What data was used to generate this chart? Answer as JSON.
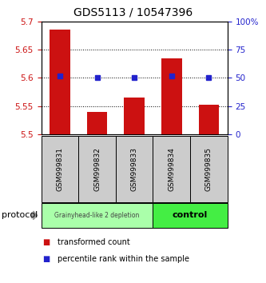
{
  "title": "GDS5113 / 10547396",
  "samples": [
    "GSM999831",
    "GSM999832",
    "GSM999833",
    "GSM999834",
    "GSM999835"
  ],
  "bar_values": [
    5.685,
    5.54,
    5.565,
    5.635,
    5.553
  ],
  "bar_base": 5.5,
  "percentile_values": [
    52,
    50,
    50,
    52,
    50
  ],
  "bar_color": "#cc1111",
  "percentile_color": "#2222cc",
  "ylim_left": [
    5.5,
    5.7
  ],
  "ylim_right": [
    0,
    100
  ],
  "yticks_left": [
    5.5,
    5.55,
    5.6,
    5.65,
    5.7
  ],
  "ytick_labels_left": [
    "5.5",
    "5.55",
    "5.6",
    "5.65",
    "5.7"
  ],
  "yticks_right": [
    0,
    25,
    50,
    75,
    100
  ],
  "ytick_labels_right": [
    "0",
    "25",
    "50",
    "75",
    "100%"
  ],
  "grid_yticks": [
    5.55,
    5.6,
    5.65
  ],
  "group1_label": "Grainyhead-like 2 depletion",
  "group2_label": "control",
  "group1_color": "#aaffaa",
  "group2_color": "#44ee44",
  "sample_box_color": "#cccccc",
  "protocol_label": "protocol",
  "legend_entries": [
    "transformed count",
    "percentile rank within the sample"
  ],
  "title_fontsize": 10,
  "tick_fontsize": 7.5,
  "sample_fontsize": 6.5,
  "legend_fontsize": 7,
  "protocol_fontsize": 8
}
